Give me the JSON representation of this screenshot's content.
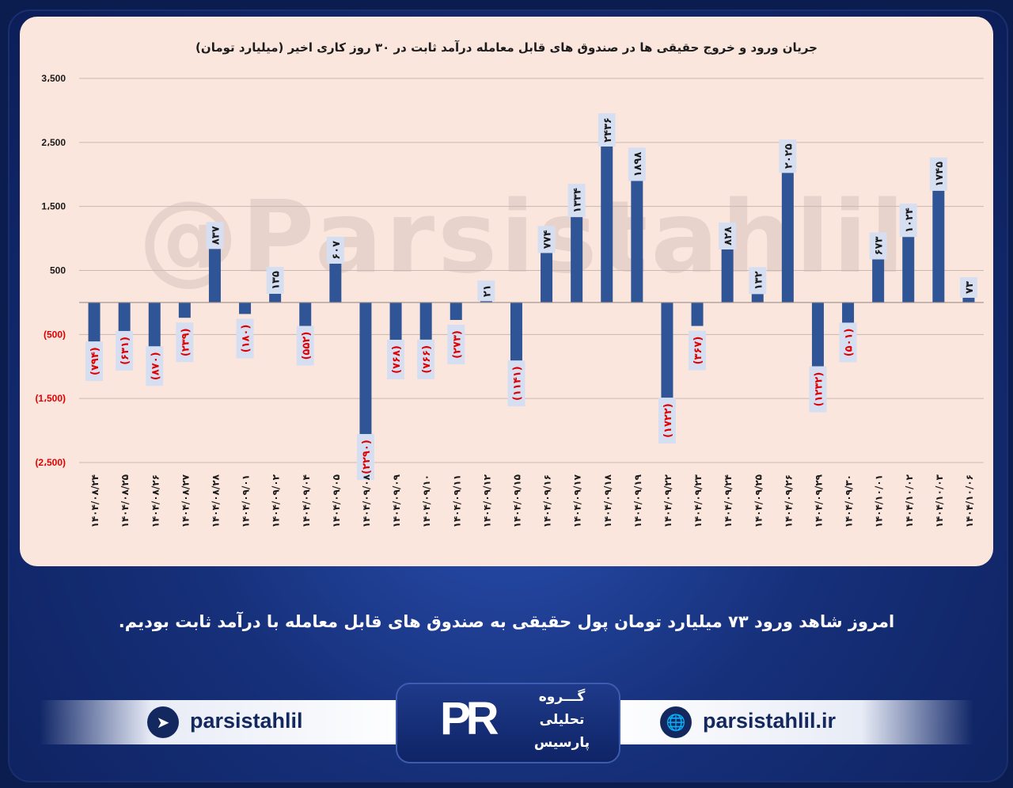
{
  "header": {
    "title": "جریان ورود و خروج حقیقی ها در صندوق های قابل معامله درآمد ثابت در ۳۰ روز کاری اخیر (میلیارد تومان)"
  },
  "watermark": "@Parsistahlil",
  "caption": "امروز شاهد ورود ۷۳ میلیارد تومان پول حقیقی به صندوق های قابل معامله با درآمد ثابت بودیم.",
  "footer": {
    "telegram_handle": "parsistahlil",
    "website": "parsistahlil.ir",
    "logo_mark": "PR",
    "logo_lines": [
      "گـــروه",
      "تحلیلی",
      "پارسیس"
    ]
  },
  "colors": {
    "bar": "#2f5597",
    "positive_label": "#1a1a1a",
    "negative_label": "#e00000",
    "label_box": "#d6dff1"
  },
  "chart_data": {
    "type": "bar",
    "title": "جریان ورود و خروج حقیقی ها در صندوق های قابل معامله درآمد ثابت در ۳۰ روز کاری اخیر (میلیارد تومان)",
    "xlabel": "",
    "ylabel": "",
    "ylim": [
      -2500,
      3500
    ],
    "yticks": [
      3500,
      2500,
      1500,
      500,
      -500,
      -1500,
      -2500
    ],
    "ytick_labels": [
      "3،500",
      "2،500",
      "1،500",
      "500",
      "(500)",
      "(1،500)",
      "(2،500)"
    ],
    "grid": true,
    "categories": [
      "۱۴۰۴/۰۸/۲۴",
      "۱۴۰۴/۰۸/۲۵",
      "۱۴۰۴/۰۸/۲۶",
      "۱۴۰۴/۰۸/۲۷",
      "۱۴۰۴/۰۸/۲۸",
      "۱۴۰۴/۰۹/۰۱",
      "۱۴۰۴/۰۹/۰۲",
      "۱۴۰۴/۰۹/۰۴",
      "۱۴۰۴/۰۹/۰۵",
      "۱۴۰۴/۰۹/۰۸",
      "۱۴۰۴/۰۹/۰۹",
      "۱۴۰۴/۰۹/۱۰",
      "۱۴۰۴/۰۹/۱۱",
      "۱۴۰۴/۰۹/۱۲",
      "۱۴۰۴/۰۹/۱۵",
      "۱۴۰۴/۰۹/۱۶",
      "۱۴۰۴/۰۹/۱۷",
      "۱۴۰۴/۰۹/۱۸",
      "۱۴۰۴/۰۹/۱۹",
      "۱۴۰۴/۰۹/۲۲",
      "۱۴۰۴/۰۹/۲۳",
      "۱۴۰۴/۰۹/۲۴",
      "۱۴۰۴/۰۹/۲۵",
      "۱۴۰۴/۰۹/۲۶",
      "۱۴۰۴/۰۹/۲۹",
      "۱۴۰۴/۰۹/۳۰",
      "۱۴۰۴/۱۰/۰۱",
      "۱۴۰۴/۱۰/۰۲",
      "۱۴۰۴/۱۰/۰۳",
      "۱۴۰۴/۱۰/۰۶"
    ],
    "values": [
      -794,
      -631,
      -870,
      -239,
      837,
      -180,
      135,
      -552,
      607,
      -2290,
      -768,
      -766,
      -273,
      21,
      -1141,
      774,
      1334,
      2436,
      1898,
      -1722,
      -367,
      828,
      132,
      2025,
      -1232,
      -501,
      673,
      1024,
      1745,
      73
    ],
    "value_labels": [
      "(۷۹۴)",
      "(۶۳۱)",
      "(۸۷۰)",
      "(۲۳۹)",
      "۸۳۷",
      "(۱۸۰)",
      "۱۳۵",
      "(۵۵۲)",
      "۶۰۷",
      "(۲۲۹۰)",
      "(۷۶۸)",
      "(۷۶۶)",
      "(۲۷۳)",
      "۲۱",
      "(۱۱۴۱)",
      "۷۷۴",
      "۱۳۳۴",
      "۲۴۳۶",
      "۱۸۹۸",
      "(۱۷۲۲)",
      "(۳۶۷)",
      "۸۲۸",
      "۱۳۲",
      "۲۰۲۵",
      "(۱۲۳۲)",
      "(۵۰۱)",
      "۶۷۳",
      "۱۰۲۴",
      "۱۷۴۵",
      "۷۳"
    ]
  }
}
